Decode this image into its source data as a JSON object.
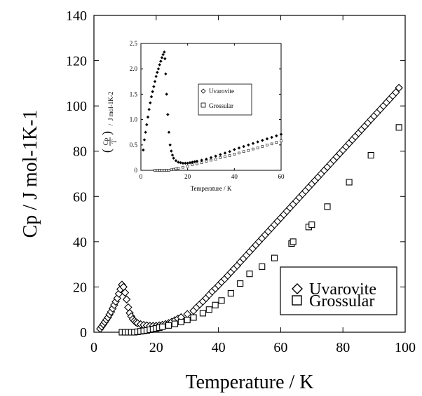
{
  "chart_data": [
    {
      "type": "scatter",
      "xlabel": "Temperature / K",
      "ylabel": "Cp / J mol-1K-1",
      "xlim": [
        0,
        100
      ],
      "ylim": [
        0,
        140
      ],
      "x_ticks": [
        "0",
        "20",
        "40",
        "60",
        "80",
        "100"
      ],
      "y_ticks": [
        "0",
        "20",
        "40",
        "60",
        "80",
        "100",
        "120",
        "140"
      ],
      "grid": false,
      "legend_position": "bottom-right",
      "series": [
        {
          "name": "Uvarovite",
          "marker": "diamond",
          "points": [
            [
              2,
              1.5
            ],
            [
              2.5,
              2.5
            ],
            [
              3,
              3.5
            ],
            [
              3.5,
              4.5
            ],
            [
              4,
              5.5
            ],
            [
              4.5,
              6.5
            ],
            [
              5,
              7.8
            ],
            [
              5.5,
              9
            ],
            [
              6,
              10.5
            ],
            [
              6.5,
              12
            ],
            [
              7,
              13.5
            ],
            [
              7.5,
              15
            ],
            [
              8,
              17
            ],
            [
              8.5,
              19
            ],
            [
              9,
              21
            ],
            [
              9.5,
              20
            ],
            [
              10,
              17.5
            ],
            [
              10.5,
              14.5
            ],
            [
              11,
              11
            ],
            [
              11.5,
              8.5
            ],
            [
              12,
              7
            ],
            [
              12.5,
              5.8
            ],
            [
              13,
              5
            ],
            [
              13.5,
              4.4
            ],
            [
              14,
              4
            ],
            [
              15,
              3.5
            ],
            [
              16,
              3.2
            ],
            [
              17,
              3
            ],
            [
              18,
              2.8
            ],
            [
              19,
              2.8
            ],
            [
              20,
              2.8
            ],
            [
              21,
              3
            ],
            [
              22,
              3.3
            ],
            [
              23,
              3.6
            ],
            [
              24,
              4
            ],
            [
              25,
              4.6
            ],
            [
              26,
              5.3
            ],
            [
              27,
              6
            ],
            [
              28,
              6.6
            ],
            [
              30,
              8
            ],
            [
              32,
              9.5
            ],
            [
              33,
              11
            ],
            [
              34,
              12.3
            ],
            [
              35,
              13.6
            ],
            [
              36,
              15
            ],
            [
              37,
              16.5
            ],
            [
              38,
              18
            ],
            [
              39,
              19.3
            ],
            [
              40,
              20.7
            ],
            [
              41,
              22.2
            ],
            [
              42,
              23.5
            ],
            [
              43,
              25
            ],
            [
              44,
              26.5
            ],
            [
              45,
              28
            ],
            [
              46,
              29.4
            ],
            [
              47,
              31
            ],
            [
              48,
              32.5
            ],
            [
              49,
              34
            ],
            [
              50,
              35.5
            ],
            [
              51,
              37
            ],
            [
              52,
              38.5
            ],
            [
              53,
              40
            ],
            [
              54,
              41.5
            ],
            [
              55,
              43
            ],
            [
              56,
              44.5
            ],
            [
              57,
              46
            ],
            [
              58,
              47.5
            ],
            [
              59,
              49
            ],
            [
              60,
              50.5
            ],
            [
              61,
              52
            ],
            [
              62,
              53.5
            ],
            [
              63,
              55
            ],
            [
              64,
              56.5
            ],
            [
              65,
              58
            ],
            [
              66,
              59.5
            ],
            [
              67,
              61
            ],
            [
              68,
              62.5
            ],
            [
              69,
              64
            ],
            [
              70,
              65.5
            ],
            [
              71,
              67
            ],
            [
              72,
              68.5
            ],
            [
              73,
              70
            ],
            [
              74,
              71.5
            ],
            [
              75,
              73
            ],
            [
              76,
              74.5
            ],
            [
              77,
              76
            ],
            [
              78,
              77.5
            ],
            [
              79,
              79
            ],
            [
              80,
              80.5
            ],
            [
              81,
              82
            ],
            [
              82,
              83.5
            ],
            [
              83,
              85
            ],
            [
              84,
              86.5
            ],
            [
              85,
              88
            ],
            [
              86,
              89.5
            ],
            [
              87,
              91
            ],
            [
              88,
              92.5
            ],
            [
              89,
              94
            ],
            [
              90,
              95.5
            ],
            [
              91,
              97
            ],
            [
              92,
              98.5
            ],
            [
              93,
              100
            ],
            [
              94,
              101.5
            ],
            [
              95,
              103
            ],
            [
              96,
              104.5
            ],
            [
              97,
              106
            ],
            [
              98,
              108
            ]
          ]
        },
        {
          "name": "Grossular",
          "marker": "square",
          "points": [
            [
              9,
              0
            ],
            [
              10,
              0
            ],
            [
              11,
              0
            ],
            [
              12,
              0
            ],
            [
              13,
              0
            ],
            [
              14,
              0.2
            ],
            [
              15,
              0.4
            ],
            [
              16,
              0.6
            ],
            [
              17,
              0.8
            ],
            [
              18,
              1.1
            ],
            [
              19,
              1.4
            ],
            [
              20,
              1.7
            ],
            [
              21,
              2
            ],
            [
              22,
              2.4
            ],
            [
              24,
              3
            ],
            [
              26,
              3.7
            ],
            [
              28,
              4.5
            ],
            [
              30,
              5.4
            ],
            [
              32,
              6.5
            ],
            [
              35,
              8.4
            ],
            [
              37,
              10
            ],
            [
              39,
              12
            ],
            [
              41,
              14
            ],
            [
              44,
              17.2
            ],
            [
              47,
              21.5
            ],
            [
              50,
              25.8
            ],
            [
              54,
              29
            ],
            [
              58,
              32.8
            ],
            [
              63.5,
              39.2
            ],
            [
              64,
              40
            ],
            [
              69,
              46.5
            ],
            [
              70,
              47.5
            ],
            [
              75,
              55.5
            ],
            [
              82,
              66.3
            ],
            [
              89,
              78.2
            ],
            [
              98,
              90.5
            ]
          ]
        }
      ]
    },
    {
      "type": "scatter",
      "xlabel": "Temperature / K",
      "ylabel": "(Cp/T) / J mol-1K-2",
      "ylabel_fraction": {
        "numerator": "Cp",
        "denominator": "T",
        "unit": "J mol-1K-2"
      },
      "xlim": [
        0,
        60
      ],
      "ylim": [
        0,
        2.5
      ],
      "x_ticks": [
        "0",
        "20",
        "40",
        "60"
      ],
      "y_ticks": [
        "0",
        "0.5",
        "1.0",
        "1.5",
        "2.0",
        "2.5"
      ],
      "grid": false,
      "legend_position": "center-right",
      "series": [
        {
          "name": "Uvarovite",
          "marker": "diamond",
          "points": [
            [
              1,
              0.4
            ],
            [
              1.5,
              0.6
            ],
            [
              2,
              0.75
            ],
            [
              2.5,
              0.9
            ],
            [
              3,
              1.05
            ],
            [
              3.5,
              1.2
            ],
            [
              4,
              1.33
            ],
            [
              4.5,
              1.45
            ],
            [
              5,
              1.55
            ],
            [
              5.5,
              1.65
            ],
            [
              6,
              1.75
            ],
            [
              6.5,
              1.85
            ],
            [
              7,
              1.93
            ],
            [
              7.5,
              2.0
            ],
            [
              8,
              2.08
            ],
            [
              8.5,
              2.15
            ],
            [
              9,
              2.22
            ],
            [
              9.5,
              2.28
            ],
            [
              10,
              2.33
            ],
            [
              10.3,
              2.2
            ],
            [
              10.6,
              1.9
            ],
            [
              11,
              1.5
            ],
            [
              11.5,
              1.1
            ],
            [
              12,
              0.75
            ],
            [
              12.5,
              0.5
            ],
            [
              13,
              0.38
            ],
            [
              13.5,
              0.3
            ],
            [
              14,
              0.24
            ],
            [
              15,
              0.19
            ],
            [
              16,
              0.16
            ],
            [
              17,
              0.15
            ],
            [
              18,
              0.14
            ],
            [
              19,
              0.14
            ],
            [
              20,
              0.14
            ],
            [
              21,
              0.15
            ],
            [
              22,
              0.16
            ],
            [
              23,
              0.17
            ],
            [
              24,
              0.18
            ],
            [
              26,
              0.2
            ],
            [
              28,
              0.22
            ],
            [
              30,
              0.25
            ],
            [
              32,
              0.28
            ],
            [
              34,
              0.31
            ],
            [
              36,
              0.34
            ],
            [
              38,
              0.37
            ],
            [
              40,
              0.41
            ],
            [
              42,
              0.44
            ],
            [
              44,
              0.47
            ],
            [
              46,
              0.5
            ],
            [
              48,
              0.53
            ],
            [
              50,
              0.56
            ],
            [
              52,
              0.59
            ],
            [
              54,
              0.62
            ],
            [
              56,
              0.65
            ],
            [
              58,
              0.68
            ],
            [
              60,
              0.71
            ]
          ]
        },
        {
          "name": "Grossular",
          "marker": "square",
          "points": [
            [
              6,
              0
            ],
            [
              7,
              0
            ],
            [
              8,
              0
            ],
            [
              9,
              0
            ],
            [
              10,
              0
            ],
            [
              11,
              0
            ],
            [
              12,
              0
            ],
            [
              13,
              0.01
            ],
            [
              14,
              0.02
            ],
            [
              15,
              0.03
            ],
            [
              16,
              0.04
            ],
            [
              18,
              0.06
            ],
            [
              20,
              0.08
            ],
            [
              22,
              0.11
            ],
            [
              24,
              0.13
            ],
            [
              26,
              0.15
            ],
            [
              28,
              0.18
            ],
            [
              30,
              0.2
            ],
            [
              32,
              0.22
            ],
            [
              34,
              0.25
            ],
            [
              36,
              0.27
            ],
            [
              38,
              0.29
            ],
            [
              40,
              0.32
            ],
            [
              42,
              0.34
            ],
            [
              44,
              0.37
            ],
            [
              46,
              0.39
            ],
            [
              48,
              0.42
            ],
            [
              50,
              0.44
            ],
            [
              52,
              0.47
            ],
            [
              54,
              0.5
            ],
            [
              56,
              0.52
            ],
            [
              58,
              0.55
            ],
            [
              60,
              0.58
            ]
          ]
        }
      ]
    }
  ]
}
